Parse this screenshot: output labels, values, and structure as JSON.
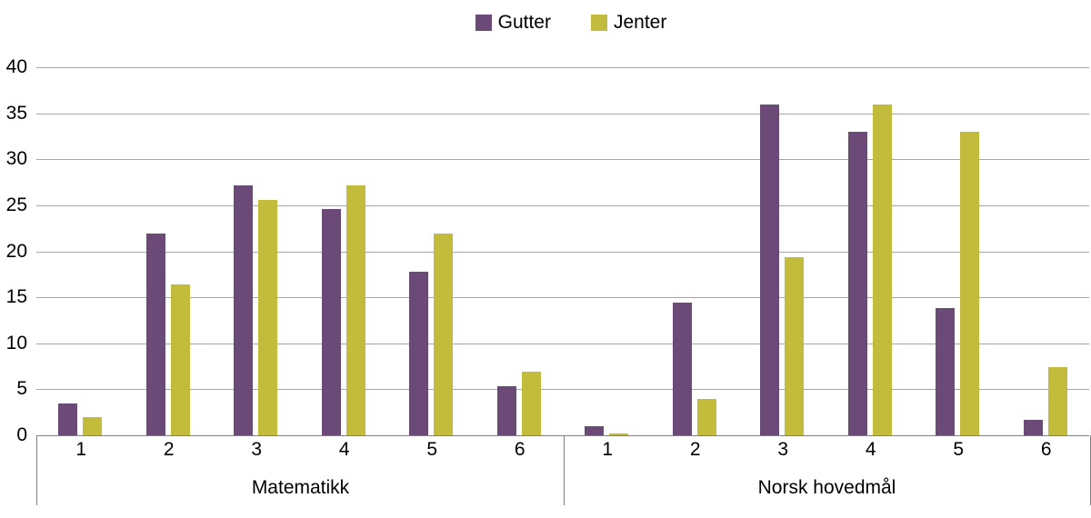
{
  "legend": {
    "items": [
      {
        "label": "Gutter",
        "color": "#6b4a77"
      },
      {
        "label": "Jenter",
        "color": "#c3bb3c"
      }
    ]
  },
  "colors": {
    "gridline": "#a6a6a6",
    "axis": "#808080",
    "series": {
      "Gutter": "#6b4a77",
      "Jenter": "#c3bb3c"
    }
  },
  "chart_data": {
    "type": "bar",
    "title": "",
    "xlabel": "",
    "ylabel": "",
    "ylim": [
      0,
      40
    ],
    "ytick_step": 5,
    "ytick_labels": [
      "0",
      "5",
      "10",
      "15",
      "20",
      "25",
      "30",
      "35",
      "40"
    ],
    "grid": true,
    "legend_position": "top-center",
    "categories": [
      "1",
      "2",
      "3",
      "4",
      "5",
      "6"
    ],
    "groups": [
      {
        "label": "Matematikk",
        "series": [
          {
            "name": "Gutter",
            "values": [
              3.5,
              21.9,
              27.2,
              24.6,
              17.8,
              5.3
            ]
          },
          {
            "name": "Jenter",
            "values": [
              2.0,
              16.4,
              25.6,
              27.2,
              21.9,
              6.9
            ]
          }
        ]
      },
      {
        "label": "Norsk hovedmål",
        "series": [
          {
            "name": "Gutter",
            "values": [
              1.0,
              14.4,
              36.0,
              33.0,
              13.8,
              1.7
            ]
          },
          {
            "name": "Jenter",
            "values": [
              0.2,
              4.0,
              19.4,
              36.0,
              33.0,
              7.4
            ]
          }
        ]
      }
    ]
  }
}
